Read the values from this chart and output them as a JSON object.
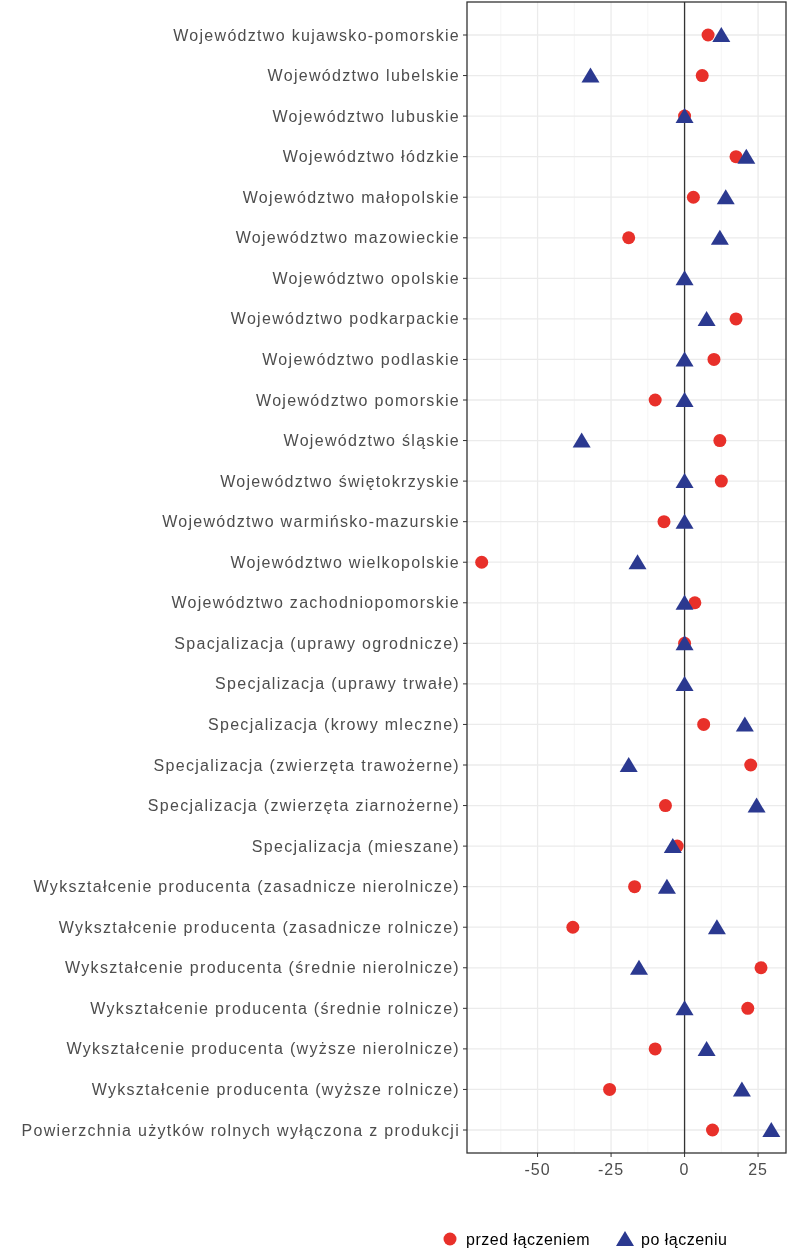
{
  "chart_data": {
    "type": "scatter",
    "orientation": "horizontal",
    "categories": [
      "Województwo kujawsko-pomorskie",
      "Województwo lubelskie",
      "Województwo lubuskie",
      "Województwo łódzkie",
      "Województwo małopolskie",
      "Województwo mazowieckie",
      "Województwo opolskie",
      "Województwo podkarpackie",
      "Województwo podlaskie",
      "Województwo pomorskie",
      "Województwo śląskie",
      "Województwo świętokrzyskie",
      "Województwo warmińsko-mazurskie",
      "Województwo wielkopolskie",
      "Województwo zachodniopomorskie",
      "Spacjalizacja (uprawy ogrodnicze)",
      "Specjalizacja (uprawy trwałe)",
      "Specjalizacja (krowy mleczne)",
      "Specjalizacja (zwierzęta trawożerne)",
      "Specjalizacja (zwierzęta ziarnożerne)",
      "Specjalizacja (mieszane)",
      "Wykształcenie producenta (zasadnicze nierolnicze)",
      "Wykształcenie producenta (zasadnicze rolnicze)",
      "Wykształcenie producenta (średnie nierolnicze)",
      "Wykształcenie producenta (średnie rolnicze)",
      "Wykształcenie producenta (wyższe nierolnicze)",
      "Wykształcenie producenta (wyższe rolnicze)",
      "Powierzchnia użytków rolnych wyłączona z produkcji"
    ],
    "series": [
      {
        "name": "przed łączeniem",
        "color": "#e8302a",
        "marker": "circle",
        "values": [
          8,
          6,
          0,
          17.5,
          3,
          -19,
          null,
          17.5,
          10,
          -10,
          12,
          12.5,
          -7,
          -69,
          3.5,
          0,
          null,
          6.5,
          22.5,
          -6.5,
          -2.5,
          -17,
          -38,
          26,
          21.5,
          -10,
          -25.5,
          9.5
        ]
      },
      {
        "name": "po łączeniu",
        "color": "#2b3990",
        "marker": "triangle",
        "values": [
          12.5,
          -32,
          0,
          21,
          14,
          12,
          0,
          7.5,
          0,
          0,
          -35,
          0,
          0,
          -16,
          0,
          0,
          0,
          20.5,
          -19,
          24.5,
          -4,
          -6,
          11,
          -15.5,
          0,
          7.5,
          19.5,
          29.5
        ]
      }
    ],
    "xlim": [
      -74,
      34.5
    ],
    "xticks": [
      -50,
      -25,
      0,
      25
    ],
    "ref_lines": [
      {
        "axis": "x",
        "value": 0,
        "color": "#333333"
      }
    ],
    "grid": true,
    "legend": "bottom"
  }
}
